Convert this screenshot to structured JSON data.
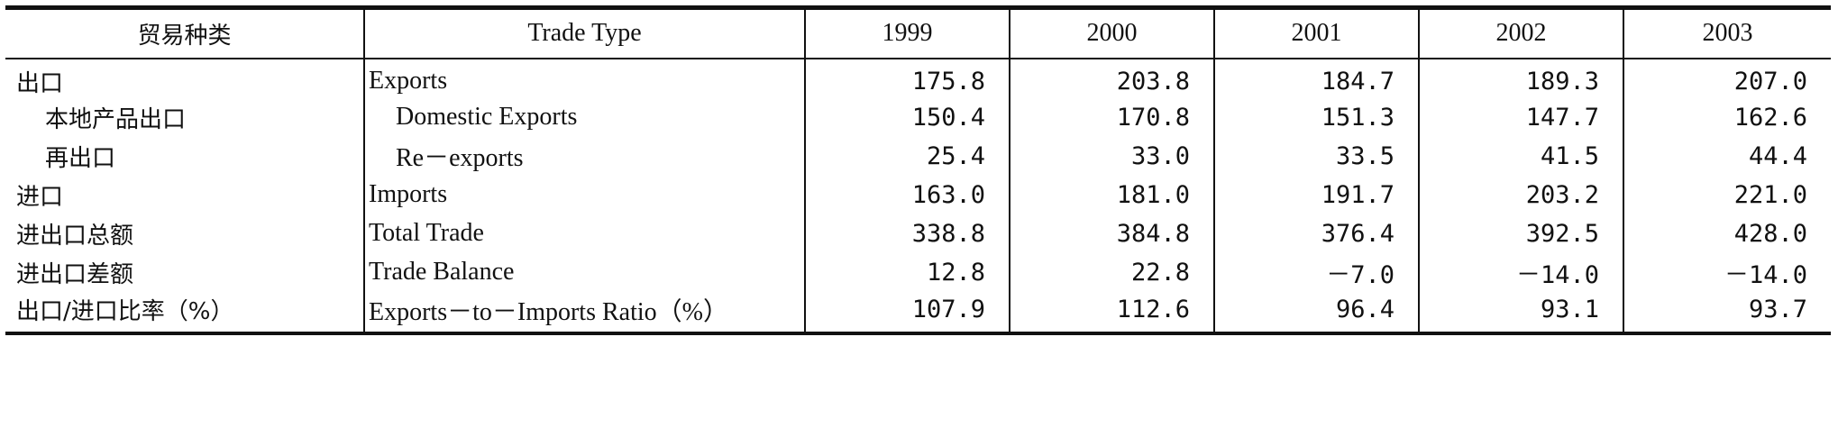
{
  "table": {
    "headers": {
      "cn": "贸易种类",
      "en": "Trade Type",
      "years": [
        "1999",
        "2000",
        "2001",
        "2002",
        "2003"
      ]
    },
    "rows": [
      {
        "cn": "出口",
        "en": "Exports",
        "values": [
          "175.8",
          "203.8",
          "184.7",
          "189.3",
          "207.0"
        ]
      },
      {
        "cn": "本地产品出口",
        "en": "Domestic Exports",
        "values": [
          "150.4",
          "170.8",
          "151.3",
          "147.7",
          "162.6"
        ]
      },
      {
        "cn": "再出口",
        "en": "Re－exports",
        "values": [
          "25.4",
          "33.0",
          "33.5",
          "41.5",
          "44.4"
        ]
      },
      {
        "cn": "进口",
        "en": "Imports",
        "values": [
          "163.0",
          "181.0",
          "191.7",
          "203.2",
          "221.0"
        ]
      },
      {
        "cn": "进出口总额",
        "en": "Total Trade",
        "values": [
          "338.8",
          "384.8",
          "376.4",
          "392.5",
          "428.0"
        ]
      },
      {
        "cn": "进出口差额",
        "en": "Trade Balance",
        "values": [
          "12.8",
          "22.8",
          "－7.0",
          "－14.0",
          "－14.0"
        ]
      },
      {
        "cn": "出口/进口比率（%）",
        "en": "Exports－to－Imports Ratio（%）",
        "values": [
          "107.9",
          "112.6",
          "96.4",
          "93.1",
          "93.7"
        ]
      }
    ]
  }
}
